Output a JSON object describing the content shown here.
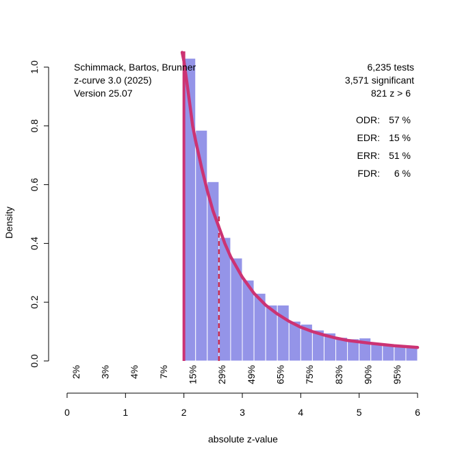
{
  "chart_data": {
    "type": "bar",
    "xlabel": "absolute z-value",
    "ylabel": "Density",
    "xlim": [
      0,
      6
    ],
    "ylim": [
      0,
      1.0
    ],
    "x_ticks": [
      "0",
      "1",
      "2",
      "3",
      "4",
      "5",
      "6"
    ],
    "y_ticks": [
      "0.0",
      "0.2",
      "0.4",
      "0.6",
      "0.8",
      "1.0"
    ],
    "bin_width": 0.2,
    "bins": [
      {
        "x0": 2.0,
        "value": 1.03
      },
      {
        "x0": 2.2,
        "value": 0.785
      },
      {
        "x0": 2.4,
        "value": 0.61
      },
      {
        "x0": 2.6,
        "value": 0.42
      },
      {
        "x0": 2.8,
        "value": 0.35
      },
      {
        "x0": 3.0,
        "value": 0.275
      },
      {
        "x0": 3.2,
        "value": 0.23
      },
      {
        "x0": 3.4,
        "value": 0.19
      },
      {
        "x0": 3.6,
        "value": 0.19
      },
      {
        "x0": 3.8,
        "value": 0.135
      },
      {
        "x0": 4.0,
        "value": 0.125
      },
      {
        "x0": 4.2,
        "value": 0.105
      },
      {
        "x0": 4.4,
        "value": 0.095
      },
      {
        "x0": 4.6,
        "value": 0.08
      },
      {
        "x0": 4.8,
        "value": 0.075
      },
      {
        "x0": 5.0,
        "value": 0.078
      },
      {
        "x0": 5.2,
        "value": 0.06
      },
      {
        "x0": 5.4,
        "value": 0.055
      },
      {
        "x0": 5.6,
        "value": 0.055
      },
      {
        "x0": 5.8,
        "value": 0.05
      }
    ],
    "curve": {
      "name": "fitted density",
      "x": [
        1.97,
        2.0,
        2.05,
        2.1,
        2.15,
        2.2,
        2.3,
        2.4,
        2.5,
        2.6,
        2.7,
        2.8,
        3.0,
        3.2,
        3.4,
        3.6,
        3.8,
        4.0,
        4.2,
        4.4,
        4.6,
        4.8,
        5.0,
        5.2,
        5.4,
        5.6,
        5.8,
        6.0
      ],
      "y": [
        1.05,
        1.02,
        0.95,
        0.875,
        0.8,
        0.75,
        0.66,
        0.58,
        0.51,
        0.455,
        0.4,
        0.355,
        0.285,
        0.23,
        0.19,
        0.16,
        0.135,
        0.115,
        0.1,
        0.088,
        0.078,
        0.07,
        0.065,
        0.06,
        0.056,
        0.052,
        0.049,
        0.046
      ]
    },
    "vertical_line_solid": 2.0,
    "vertical_line_dashed": {
      "x": 2.6,
      "y_top": 0.5
    },
    "power_labels": [
      {
        "x": 0.15,
        "label": "2%"
      },
      {
        "x": 0.65,
        "label": "3%"
      },
      {
        "x": 1.15,
        "label": "4%"
      },
      {
        "x": 1.65,
        "label": "7%"
      },
      {
        "x": 2.15,
        "label": "15%"
      },
      {
        "x": 2.65,
        "label": "29%"
      },
      {
        "x": 3.15,
        "label": "49%"
      },
      {
        "x": 3.65,
        "label": "65%"
      },
      {
        "x": 4.15,
        "label": "75%"
      },
      {
        "x": 4.65,
        "label": "83%"
      },
      {
        "x": 5.15,
        "label": "90%"
      },
      {
        "x": 5.65,
        "label": "95%"
      }
    ],
    "colors": {
      "bars": "#9494e8",
      "curve": "#cc3373",
      "solid_line": "#cc3373",
      "dashed_line": "#cc2f4f"
    }
  },
  "annotations": {
    "top_left": [
      "Schimmack, Bartos, Brunner",
      "z-curve 3.0 (2025)",
      "Version 25.07"
    ],
    "top_right": [
      "6,235 tests",
      "3,571 significant",
      "821 z > 6"
    ],
    "stats": [
      {
        "label": "ODR:",
        "value": "57 %"
      },
      {
        "label": "EDR:",
        "value": "15 %"
      },
      {
        "label": "ERR:",
        "value": "51 %"
      },
      {
        "label": "FDR:",
        "value": "  6 %"
      }
    ]
  }
}
